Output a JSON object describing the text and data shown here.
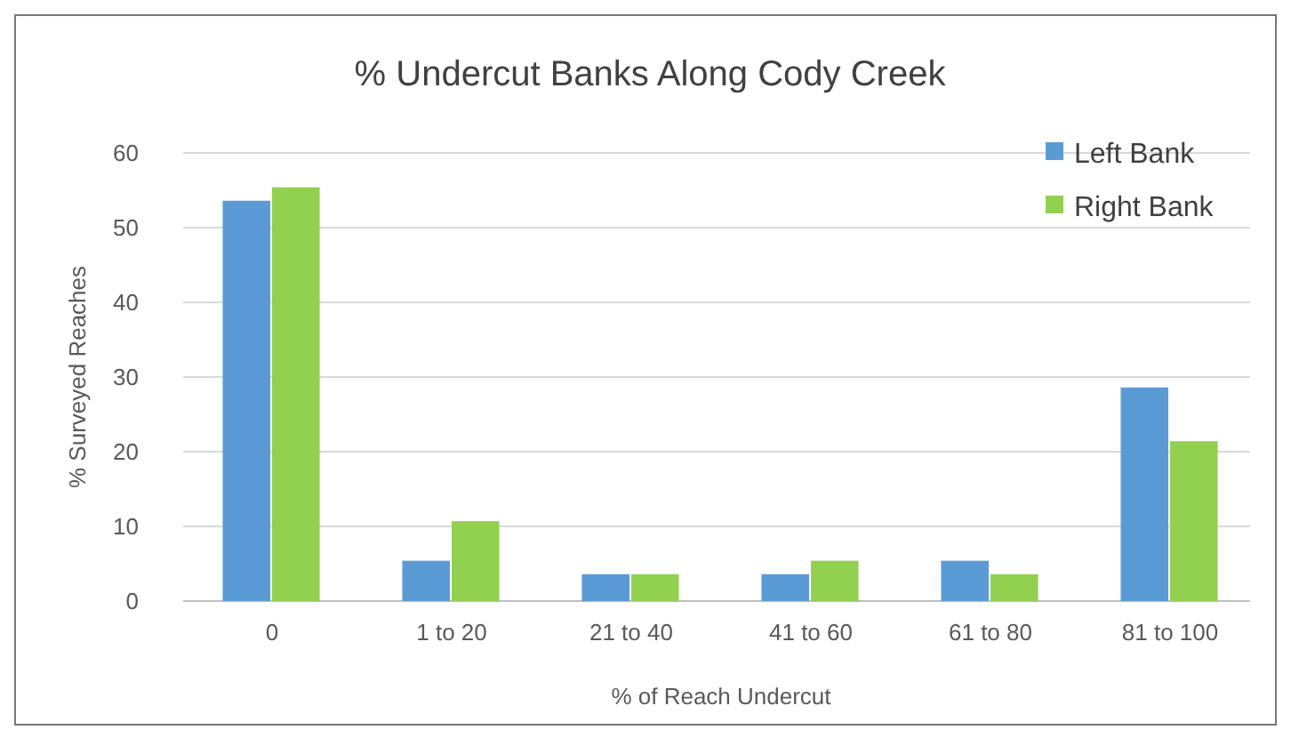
{
  "chart_data": {
    "type": "bar",
    "title": "% Undercut Banks Along Cody Creek",
    "xlabel": "% of Reach Undercut",
    "ylabel": "% Surveyed Reaches",
    "categories": [
      "0",
      "1 to 20",
      "21 to 40",
      "41 to 60",
      "61 to 80",
      "81 to 100"
    ],
    "series": [
      {
        "name": "Left Bank",
        "color": "#5b9bd5",
        "values": [
          53.6,
          5.4,
          3.6,
          3.6,
          5.4,
          28.6
        ]
      },
      {
        "name": "Right Bank",
        "color": "#92d050",
        "values": [
          55.4,
          10.7,
          3.6,
          5.4,
          3.6,
          21.4
        ]
      }
    ],
    "ylim": [
      0,
      60
    ],
    "yticks": [
      0,
      10,
      20,
      30,
      40,
      50,
      60
    ],
    "grid": "y",
    "legend": "top right"
  }
}
